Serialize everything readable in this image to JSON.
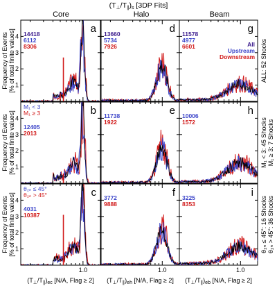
{
  "figure": {
    "title_main": "(T",
    "title_sub1": "⊥",
    "title_mid": "/T",
    "title_sub2": "∥",
    "title_close": ")",
    "title_sub3": "s",
    "title_tail": " [3DP Fits]",
    "col_titles": [
      "Core",
      "Halo",
      "Beam"
    ],
    "ylabel_line1": "Frequency of Events",
    "ylabel_line2": "[% of total finite values]",
    "xlabels": [
      {
        "pre": "(T",
        "s1": "⊥",
        "mid": "/T",
        "s2": "∥",
        "close": ")",
        "s3": "ec",
        "post": " [N/A, Flag ≥ 2]"
      },
      {
        "pre": "(T",
        "s1": "⊥",
        "mid": "/T",
        "s2": "∥",
        "close": ")",
        "s3": "eh",
        "post": " [N/A, Flag ≥ 2]"
      },
      {
        "pre": "(T",
        "s1": "⊥",
        "mid": "/T",
        "s2": "∥",
        "close": ")",
        "s3": "eb",
        "post": " [N/A, Flag ≥ 2]"
      }
    ],
    "x_tick_label": "1.0",
    "y_tick_labels": [
      "1",
      "2",
      "3",
      "4"
    ],
    "row_labels": [
      {
        "line1": "ALL:  52 Shocks",
        "line2": ""
      },
      {
        "line1": "M₁ < 3:  45 Shocks",
        "line2": "M₁ ≥ 3:   7 Shocks"
      },
      {
        "line1": "θ₂ₙ ≤ 45°:  16 Shocks",
        "line2": "θ₂ₙ > 45°:  36 Shocks"
      }
    ],
    "legend": {
      "all": "All",
      "upstream": "Upstream",
      "downstream": "Downstream"
    },
    "colors": {
      "all": "#000000",
      "upstream": "#3b44c9",
      "downstream": "#d11a1a",
      "purple": "#3a1a8c"
    }
  },
  "chart_data": {
    "type": "line",
    "x_scale": "log",
    "y_range": [
      0,
      5
    ],
    "y_ticks": [
      1,
      2,
      3,
      4
    ],
    "panels": [
      {
        "letter": "a",
        "row": 0,
        "col": 0,
        "shape": "core",
        "peak": 4.9,
        "width": 0.28,
        "spikes": [
          [
            0.55,
            2.7
          ],
          [
            0.5,
            0.5
          ]
        ],
        "counts": [
          {
            "text": "14418",
            "color": "purple"
          },
          {
            "text": "6112",
            "color": "upstream"
          },
          {
            "text": "8306",
            "color": "downstream"
          }
        ],
        "conditions": []
      },
      {
        "letter": "d",
        "row": 0,
        "col": 1,
        "shape": "halo",
        "peak": 2.2,
        "width": 0.22,
        "spikes": [],
        "counts": [
          {
            "text": "13660",
            "color": "purple"
          },
          {
            "text": "5734",
            "color": "upstream"
          },
          {
            "text": "7926",
            "color": "downstream"
          }
        ],
        "conditions": []
      },
      {
        "letter": "g",
        "row": 0,
        "col": 2,
        "shape": "beam",
        "peak": 1.0,
        "width": 0.55,
        "spikes": [],
        "counts": [
          {
            "text": "11578",
            "color": "purple"
          },
          {
            "text": "4977",
            "color": "upstream"
          },
          {
            "text": "6601",
            "color": "downstream"
          }
        ],
        "conditions": []
      },
      {
        "letter": "b",
        "row": 1,
        "col": 0,
        "shape": "core",
        "peak": 4.8,
        "width": 0.28,
        "spikes": [
          [
            0.55,
            0.6
          ]
        ],
        "counts": [
          {
            "text": "12405",
            "color": "upstream"
          },
          {
            "text": "2013",
            "color": "downstream"
          }
        ],
        "conditions": [
          {
            "text": "M₁ < 3",
            "color": "upstream"
          },
          {
            "text": "M₁ ≥ 3",
            "color": "downstream"
          }
        ]
      },
      {
        "letter": "e",
        "row": 1,
        "col": 1,
        "shape": "halo",
        "peak": 2.3,
        "width": 0.22,
        "spikes": [],
        "counts": [
          {
            "text": "11738",
            "color": "upstream"
          },
          {
            "text": "1922",
            "color": "downstream"
          }
        ],
        "conditions": []
      },
      {
        "letter": "h",
        "row": 1,
        "col": 2,
        "shape": "beam",
        "peak": 1.2,
        "width": 0.55,
        "spikes": [],
        "counts": [
          {
            "text": "10006",
            "color": "upstream"
          },
          {
            "text": "1572",
            "color": "downstream"
          }
        ],
        "conditions": []
      },
      {
        "letter": "c",
        "row": 2,
        "col": 0,
        "shape": "core",
        "peak": 4.9,
        "width": 0.28,
        "spikes": [
          [
            0.55,
            3.1
          ]
        ],
        "counts": [
          {
            "text": "4031",
            "color": "upstream"
          },
          {
            "text": "10387",
            "color": "downstream"
          }
        ],
        "conditions": [
          {
            "text": "θ₂ₙ ≤ 45°",
            "color": "upstream"
          },
          {
            "text": "θ₂ₙ > 45°",
            "color": "downstream"
          }
        ]
      },
      {
        "letter": "f",
        "row": 2,
        "col": 1,
        "shape": "halo",
        "peak": 2.2,
        "width": 0.22,
        "spikes": [],
        "counts": [
          {
            "text": "3772",
            "color": "upstream"
          },
          {
            "text": "9888",
            "color": "downstream"
          }
        ],
        "conditions": []
      },
      {
        "letter": "i",
        "row": 2,
        "col": 2,
        "shape": "beam",
        "peak": 1.1,
        "width": 0.55,
        "spikes": [],
        "counts": [
          {
            "text": "3225",
            "color": "upstream"
          },
          {
            "text": "8353",
            "color": "downstream"
          }
        ],
        "conditions": []
      }
    ]
  }
}
